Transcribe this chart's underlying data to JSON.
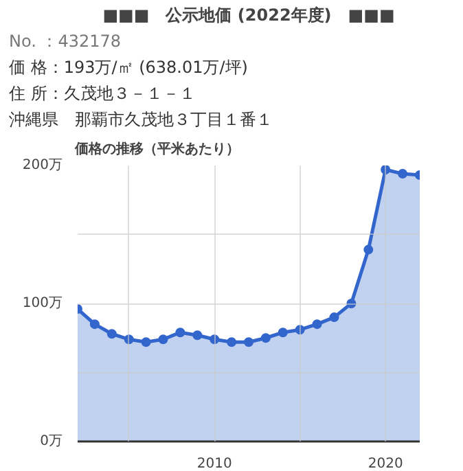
{
  "chart_data": {
    "type": "area",
    "title": "■■■　公示地価 (2022年度)　■■■",
    "annotations": [
      "No. ：432178",
      "価 格：193万/㎡ (638.01万/坪)",
      "住 所：久茂地３－１－１",
      "沖縄県　那覇市久茂地３丁目１番１"
    ],
    "subtitle": "価格の推移（平米あたり）",
    "x": [
      2002,
      2003,
      2004,
      2005,
      2006,
      2007,
      2008,
      2009,
      2010,
      2011,
      2012,
      2013,
      2014,
      2015,
      2016,
      2017,
      2018,
      2019,
      2020,
      2021,
      2022
    ],
    "series": [
      {
        "color": "#3366cc",
        "values": [
          96,
          85,
          78,
          74,
          72,
          74,
          79,
          77,
          74,
          72,
          72,
          75,
          79,
          81,
          85,
          90,
          100,
          139,
          197,
          194,
          193
        ]
      }
    ],
    "xlim": [
      2002,
      2022
    ],
    "xticks": [
      {
        "value": 2005,
        "label": null
      },
      2010,
      {
        "value": 2015,
        "label": null
      },
      2020
    ],
    "ylim": [
      0,
      200
    ],
    "yticks": [
      {
        "value": 0,
        "label": "0万"
      },
      {
        "value": 50,
        "label": null
      },
      {
        "value": 100,
        "label": "100万"
      },
      {
        "value": 150,
        "label": null
      },
      {
        "value": 200,
        "label": "200万"
      }
    ],
    "grid": true,
    "marker": "circle"
  }
}
